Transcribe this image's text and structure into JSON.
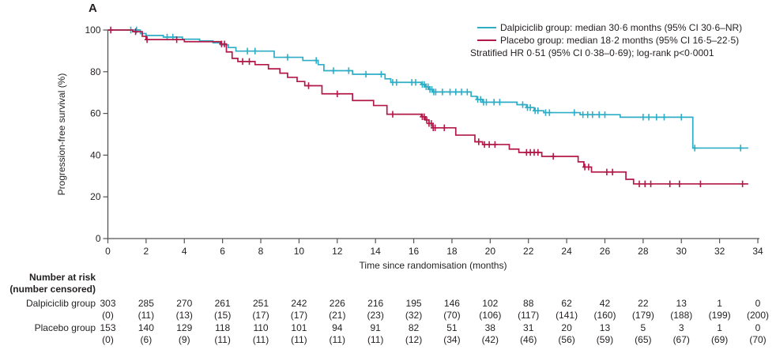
{
  "panel_label": "A",
  "colors": {
    "dalpiciclib": "#2EAEC6",
    "placebo": "#B21948",
    "axis": "#545456",
    "text": "#231F20"
  },
  "legend": {
    "entries": [
      {
        "label": "Dalpiciclib group: median 30·6 months (95% CI 30·6–NR)",
        "color_key": "dalpiciclib"
      },
      {
        "label": "Placebo group: median 18·2 months (95% CI 16·5–22·5)",
        "color_key": "placebo"
      }
    ],
    "note": "Stratified HR 0·51 (95% CI 0·38–0·69); log-rank p<0·0001"
  },
  "chart_data": {
    "type": "line",
    "subtype": "kaplan-meier-step",
    "title": "",
    "xlabel": "Time since randomisation (months)",
    "ylabel": "Progression-free survival (%)",
    "xlim": [
      0,
      34
    ],
    "ylim": [
      0,
      100
    ],
    "x_ticks": [
      0,
      2,
      4,
      6,
      8,
      10,
      12,
      14,
      16,
      18,
      20,
      22,
      24,
      26,
      28,
      30,
      32,
      34
    ],
    "y_ticks": [
      0,
      20,
      40,
      60,
      80,
      100
    ],
    "grid": false,
    "legend_position": "top-right",
    "series": [
      {
        "name": "Dalpiciclib group",
        "color_key": "dalpiciclib",
        "median_months": 30.6,
        "ci_95": "30·6–NR",
        "end_time": 33.5,
        "steps": [
          [
            0,
            100
          ],
          [
            1.7,
            98.3
          ],
          [
            2.0,
            97.4
          ],
          [
            2.9,
            96.6
          ],
          [
            3.9,
            95.6
          ],
          [
            4.8,
            94.8
          ],
          [
            5.5,
            93.9
          ],
          [
            5.9,
            92.9
          ],
          [
            6.3,
            91.6
          ],
          [
            6.7,
            89.9
          ],
          [
            8.7,
            86.9
          ],
          [
            10.2,
            85.4
          ],
          [
            11.0,
            83.4
          ],
          [
            11.3,
            80.5
          ],
          [
            12.8,
            78.8
          ],
          [
            14.5,
            76.6
          ],
          [
            14.8,
            74.9
          ],
          [
            16.4,
            73.9
          ],
          [
            16.6,
            72.8
          ],
          [
            16.8,
            71.5
          ],
          [
            17.0,
            70.3
          ],
          [
            19.0,
            68.2
          ],
          [
            19.3,
            66.7
          ],
          [
            19.6,
            65.4
          ],
          [
            21.4,
            64.2
          ],
          [
            21.9,
            62.8
          ],
          [
            22.3,
            61.3
          ],
          [
            22.8,
            60.4
          ],
          [
            24.7,
            59.4
          ],
          [
            26.8,
            58.2
          ],
          [
            30.6,
            43.4
          ]
        ],
        "censor_times": [
          1.2,
          1.5,
          3.1,
          3.4,
          7.3,
          7.7,
          9.4,
          10.9,
          11.8,
          12.6,
          13.5,
          14.3,
          14.9,
          15.1,
          15.9,
          16.1,
          16.45,
          16.55,
          16.65,
          16.75,
          16.85,
          16.95,
          17.05,
          17.15,
          17.5,
          17.9,
          18.2,
          18.5,
          18.8,
          19.35,
          19.5,
          19.65,
          19.8,
          20.2,
          20.5,
          21.7,
          21.95,
          22.1,
          22.35,
          22.5,
          22.9,
          23.1,
          24.4,
          24.85,
          25.1,
          25.35,
          25.7,
          26.0,
          28.0,
          28.3,
          28.7,
          29.1,
          30.0,
          30.7,
          33.1
        ]
      },
      {
        "name": "Placebo group",
        "color_key": "placebo",
        "median_months": 18.2,
        "ci_95": "16·5–22·5",
        "end_time": 33.5,
        "steps": [
          [
            0,
            100
          ],
          [
            1.3,
            99.2
          ],
          [
            1.8,
            97.0
          ],
          [
            2.0,
            95.4
          ],
          [
            4.0,
            94.4
          ],
          [
            5.9,
            93.3
          ],
          [
            6.2,
            89.5
          ],
          [
            6.5,
            86.4
          ],
          [
            6.8,
            84.9
          ],
          [
            7.7,
            83.4
          ],
          [
            8.4,
            81.4
          ],
          [
            9.0,
            79.3
          ],
          [
            9.4,
            77.3
          ],
          [
            9.9,
            75.3
          ],
          [
            10.3,
            73.3
          ],
          [
            11.2,
            69.4
          ],
          [
            12.8,
            66.2
          ],
          [
            13.9,
            63.8
          ],
          [
            14.6,
            59.6
          ],
          [
            16.4,
            58.4
          ],
          [
            16.6,
            56.9
          ],
          [
            16.8,
            55.2
          ],
          [
            17.0,
            53.1
          ],
          [
            18.2,
            49.6
          ],
          [
            19.2,
            46.4
          ],
          [
            19.6,
            45.1
          ],
          [
            21.0,
            42.9
          ],
          [
            21.5,
            41.3
          ],
          [
            22.7,
            39.4
          ],
          [
            24.6,
            36.8
          ],
          [
            24.9,
            34.3
          ],
          [
            25.3,
            31.9
          ],
          [
            27.1,
            28.4
          ],
          [
            27.5,
            26.2
          ]
        ],
        "censor_times": [
          0.15,
          1.45,
          2.05,
          3.6,
          5.95,
          6.1,
          7.05,
          7.4,
          10.5,
          12.0,
          14.9,
          16.45,
          16.55,
          16.68,
          16.8,
          16.92,
          17.02,
          17.12,
          17.6,
          19.4,
          19.7,
          19.95,
          20.25,
          21.9,
          22.1,
          22.3,
          22.5,
          23.3,
          24.95,
          25.15,
          26.1,
          26.4,
          27.8,
          28.1,
          28.4,
          29.4,
          29.9,
          31.0,
          33.2
        ]
      }
    ]
  },
  "risk_table": {
    "header_line1": "Number at risk",
    "header_line2": "(number censored)",
    "time_points": [
      0,
      2,
      4,
      6,
      8,
      10,
      12,
      14,
      16,
      18,
      20,
      22,
      24,
      26,
      28,
      30,
      32,
      34
    ],
    "rows": [
      {
        "label": "Dalpiciclib group",
        "at_risk": [
          "303",
          "285",
          "270",
          "261",
          "251",
          "242",
          "226",
          "216",
          "195",
          "146",
          "102",
          "88",
          "62",
          "42",
          "22",
          "13",
          "1",
          "0"
        ],
        "censored": [
          "(0)",
          "(11)",
          "(13)",
          "(15)",
          "(17)",
          "(17)",
          "(21)",
          "(23)",
          "(32)",
          "(70)",
          "(106)",
          "(117)",
          "(141)",
          "(160)",
          "(179)",
          "(188)",
          "(199)",
          "(200)"
        ]
      },
      {
        "label": "Placebo group",
        "at_risk": [
          "153",
          "140",
          "129",
          "118",
          "110",
          "101",
          "94",
          "91",
          "82",
          "51",
          "38",
          "31",
          "20",
          "13",
          "5",
          "3",
          "1",
          "0"
        ],
        "censored": [
          "(0)",
          "(6)",
          "(9)",
          "(11)",
          "(11)",
          "(11)",
          "(11)",
          "(11)",
          "(12)",
          "(34)",
          "(42)",
          "(46)",
          "(56)",
          "(59)",
          "(65)",
          "(67)",
          "(69)",
          "(70)"
        ]
      }
    ]
  }
}
